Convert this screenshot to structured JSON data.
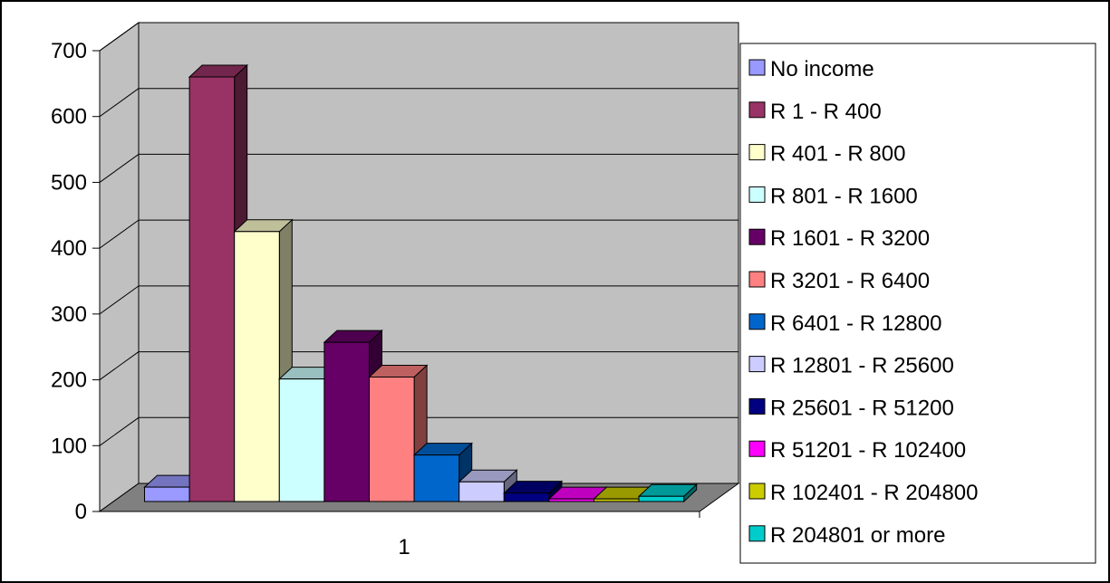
{
  "chart_data": {
    "type": "bar",
    "categories": [
      "1"
    ],
    "series": [
      {
        "name": "No income",
        "values": [
          22
        ],
        "color": "#9999ff"
      },
      {
        "name": "R 1 - R 400",
        "values": [
          648
        ],
        "color": "#993366"
      },
      {
        "name": "R 401 - R 800",
        "values": [
          412
        ],
        "color": "#ffffcc"
      },
      {
        "name": "R 801 - R 1600",
        "values": [
          187
        ],
        "color": "#ccffff"
      },
      {
        "name": "R 1601 - R 3200",
        "values": [
          243
        ],
        "color": "#660066"
      },
      {
        "name": "R 3201 - R 6400",
        "values": [
          190
        ],
        "color": "#ff8080"
      },
      {
        "name": "R 6401 - R 12800",
        "values": [
          71
        ],
        "color": "#0066cc"
      },
      {
        "name": "R 12801 - R 25600",
        "values": [
          30
        ],
        "color": "#ccccff"
      },
      {
        "name": "R 25601 - R 51200",
        "values": [
          13
        ],
        "color": "#000080"
      },
      {
        "name": "R 51201 - R 102400",
        "values": [
          4
        ],
        "color": "#ff00ff"
      },
      {
        "name": "R 102401 - R 204800",
        "values": [
          4
        ],
        "color": "#cccc00"
      },
      {
        "name": "R 204801 or more",
        "values": [
          8
        ],
        "color": "#00cccc"
      }
    ],
    "ylim": [
      0,
      700
    ],
    "yticks": [
      "0",
      "100",
      "200",
      "300",
      "400",
      "500",
      "600",
      "700"
    ],
    "grid": true,
    "legend_position": "right",
    "wall_color": "#c0c0c0",
    "floor_color": "#808080"
  }
}
